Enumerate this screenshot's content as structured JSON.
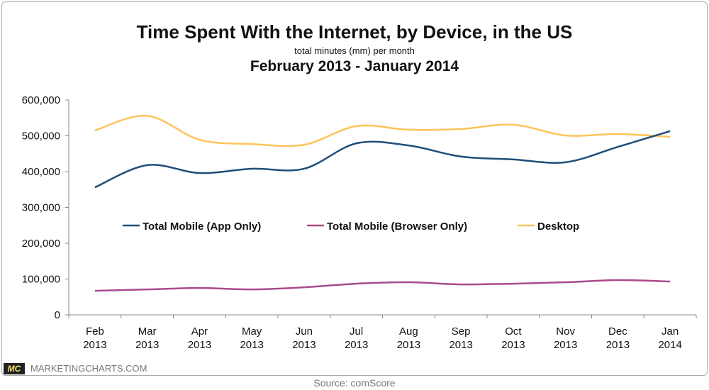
{
  "chart_data": {
    "type": "line",
    "title": "Time Spent With the Internet, by Device, in the US",
    "subtitle": "total minutes (mm) per month",
    "subtitle2": "February 2013 - January 2014",
    "categories": [
      [
        "Feb",
        "2013"
      ],
      [
        "Mar",
        "2013"
      ],
      [
        "Apr",
        "2013"
      ],
      [
        "May",
        "2013"
      ],
      [
        "Jun",
        "2013"
      ],
      [
        "Jul",
        "2013"
      ],
      [
        "Aug",
        "2013"
      ],
      [
        "Sep",
        "2013"
      ],
      [
        "Oct",
        "2013"
      ],
      [
        "Nov",
        "2013"
      ],
      [
        "Dec",
        "2013"
      ],
      [
        "Jan",
        "2014"
      ]
    ],
    "ylim": [
      0,
      600000
    ],
    "yticks": [
      0,
      100000,
      200000,
      300000,
      400000,
      500000,
      600000
    ],
    "ytick_labels": [
      "0",
      "100,000",
      "200,000",
      "300,000",
      "400,000",
      "500,000",
      "600,000"
    ],
    "grid": false,
    "legend_placement": "center",
    "series": [
      {
        "name": "Total Mobile (App Only)",
        "color": "#1f4e79",
        "values": [
          356000,
          418000,
          396000,
          408000,
          408000,
          479000,
          473000,
          442000,
          434000,
          426000,
          469000,
          513000
        ]
      },
      {
        "name": "Total Mobile (Browser Only)",
        "color": "#a94a8c",
        "values": [
          67000,
          71000,
          75000,
          71000,
          77000,
          87000,
          91000,
          85000,
          87000,
          91000,
          97000,
          93000
        ]
      },
      {
        "name": "Desktop",
        "color": "#fcc45a",
        "values": [
          515000,
          556000,
          489000,
          477000,
          475000,
          527000,
          517000,
          519000,
          531000,
          501000,
          505000,
          497000
        ]
      }
    ]
  },
  "footer": {
    "logo": "MC",
    "site": "MARKETINGCHARTS.COM",
    "source": "Source: comScore"
  }
}
